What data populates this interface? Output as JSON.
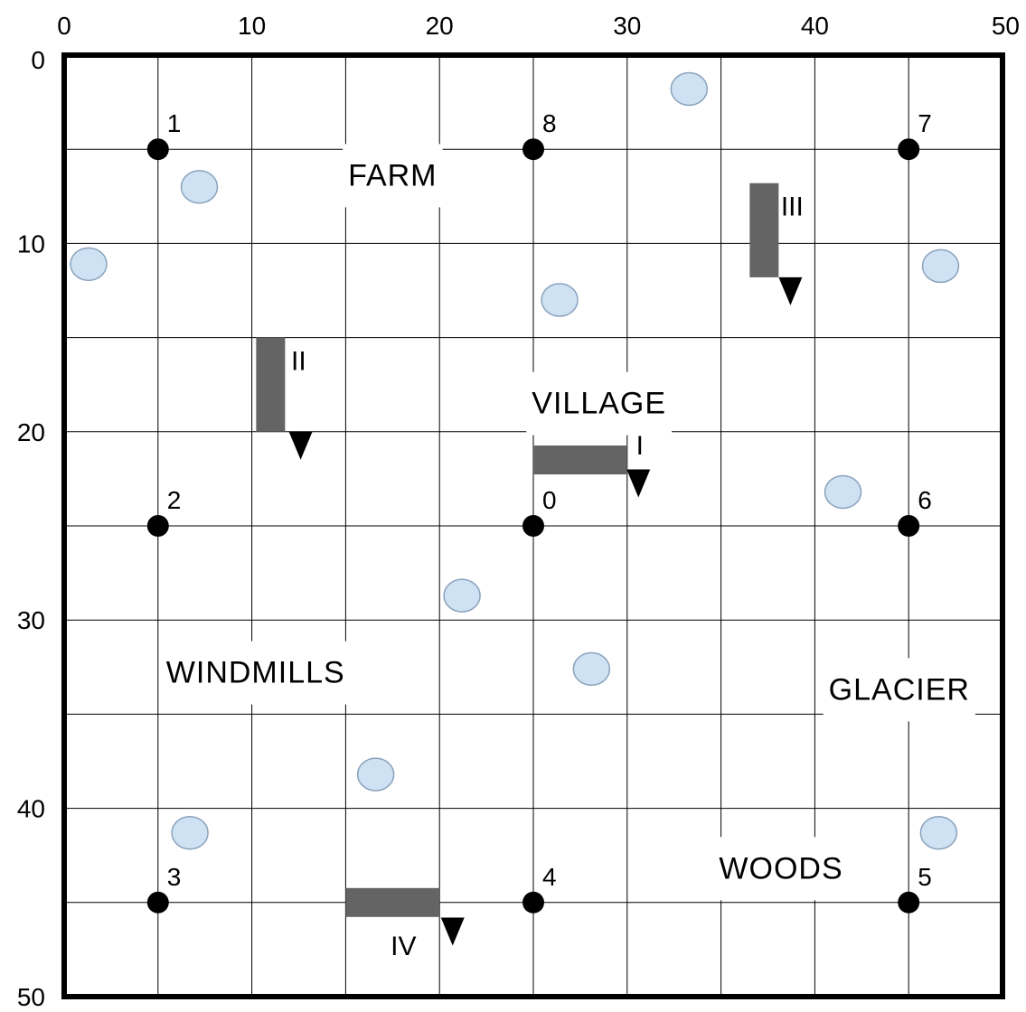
{
  "colors": {
    "grid": "#000000",
    "border": "#000000",
    "point": "#000000",
    "wall": "#646464",
    "arrow": "#000000",
    "lake_fill": "#cfe2f3",
    "lake_stroke": "#8aa2bc",
    "label_bg": "#ffffff"
  },
  "axes": {
    "range": [
      0,
      50
    ],
    "grid_step": 5,
    "top_ticks": [
      "0",
      "10",
      "20",
      "30",
      "40",
      "50"
    ],
    "left_ticks": [
      "0",
      "10",
      "20",
      "30",
      "40",
      "50"
    ]
  },
  "points": [
    {
      "id": "1",
      "x": 5,
      "y": 5
    },
    {
      "id": "8",
      "x": 25,
      "y": 5
    },
    {
      "id": "7",
      "x": 45,
      "y": 5
    },
    {
      "id": "2",
      "x": 5,
      "y": 25
    },
    {
      "id": "0",
      "x": 25,
      "y": 25
    },
    {
      "id": "6",
      "x": 45,
      "y": 25
    },
    {
      "id": "3",
      "x": 5,
      "y": 45
    },
    {
      "id": "4",
      "x": 25,
      "y": 45
    },
    {
      "id": "5",
      "x": 45,
      "y": 45
    }
  ],
  "regions": [
    {
      "label": "FARM",
      "x": 17.5,
      "y": 6.5
    },
    {
      "label": "VILLAGE",
      "x": 28.5,
      "y": 18.6
    },
    {
      "label": "WINDMILLS",
      "x": 10.2,
      "y": 32.9
    },
    {
      "label": "GLACIER",
      "x": 44.5,
      "y": 33.8
    },
    {
      "label": "WOODS",
      "x": 38.2,
      "y": 43.3
    }
  ],
  "walls": [
    {
      "label": "I",
      "orientation": "horizontal",
      "x1": 25,
      "x2": 30,
      "y": 21.5,
      "arrow_x": 30.6,
      "arrow_y": 22
    },
    {
      "label": "II",
      "orientation": "vertical",
      "x": 11,
      "y1": 15,
      "y2": 20,
      "arrow_x": 12.6,
      "arrow_y": 20
    },
    {
      "label": "III",
      "orientation": "vertical",
      "x": 37.3,
      "y1": 6.8,
      "y2": 11.8,
      "arrow_x": 38.7,
      "arrow_y": 11.8
    },
    {
      "label": "IV",
      "orientation": "horizontal",
      "x1": 15,
      "x2": 20,
      "y": 45,
      "arrow_x": 20.7,
      "arrow_y": 45.8
    }
  ],
  "lakes": [
    {
      "x": 33.3,
      "y": 1.8
    },
    {
      "x": 7.2,
      "y": 7.0
    },
    {
      "x": 1.3,
      "y": 11.1
    },
    {
      "x": 26.4,
      "y": 13.0
    },
    {
      "x": 46.7,
      "y": 11.2
    },
    {
      "x": 41.5,
      "y": 23.2
    },
    {
      "x": 21.2,
      "y": 28.7
    },
    {
      "x": 28.1,
      "y": 32.6
    },
    {
      "x": 16.6,
      "y": 38.2
    },
    {
      "x": 6.7,
      "y": 41.3
    },
    {
      "x": 46.6,
      "y": 41.3
    }
  ]
}
